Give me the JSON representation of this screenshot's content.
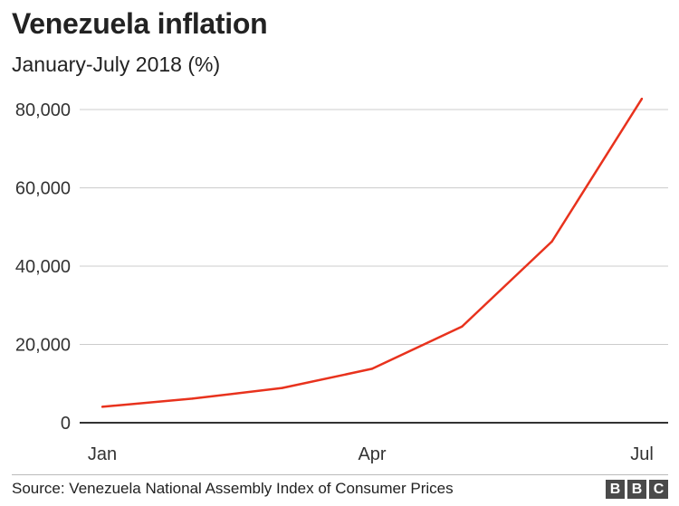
{
  "title": "Venezuela inflation",
  "subtitle": "January-July 2018 (%)",
  "source": "Source: Venezuela National Assembly Index of Consumer Prices",
  "logo_letters": [
    "B",
    "B",
    "C"
  ],
  "colors": {
    "line": "#e8321d",
    "grid": "#cccccc",
    "baseline": "#333333"
  },
  "chart_data": {
    "type": "line",
    "x_tick_labels": [
      "Jan",
      "Apr",
      "Jul"
    ],
    "x": [
      "Jan",
      "Feb",
      "Mar",
      "Apr",
      "May",
      "Jun",
      "Jul"
    ],
    "series": [
      {
        "values": [
          4068,
          6147,
          8878,
          13779,
          24571,
          46305,
          82766
        ]
      }
    ],
    "y_ticks": [
      0,
      20000,
      40000,
      60000,
      80000
    ],
    "y_tick_labels": [
      "0",
      "20,000",
      "40,000",
      "60,000",
      "80,000"
    ],
    "ylim": [
      0,
      80000
    ],
    "grid": true
  }
}
